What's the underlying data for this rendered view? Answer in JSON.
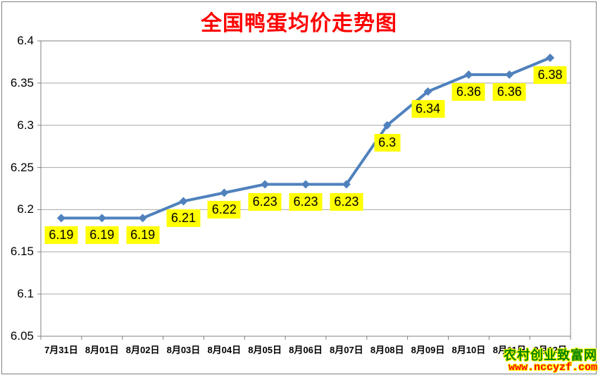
{
  "chart_data": {
    "type": "line",
    "title": "全国鸭蛋均价走势图",
    "categories": [
      "7月31日",
      "8月01日",
      "8月02日",
      "8月03日",
      "8月04日",
      "8月05日",
      "8月06日",
      "8月07日",
      "8月08日",
      "8月09日",
      "8月10日",
      "8月11日",
      "8月12日"
    ],
    "values": [
      6.19,
      6.19,
      6.19,
      6.21,
      6.22,
      6.23,
      6.23,
      6.23,
      6.3,
      6.34,
      6.36,
      6.36,
      6.38
    ],
    "data_labels": [
      "6.19",
      "6.19",
      "6.19",
      "6.21",
      "6.22",
      "6.23",
      "6.23",
      "6.23",
      "6.3",
      "6.34",
      "6.36",
      "6.36",
      "6.38"
    ],
    "xlabel": "",
    "ylabel": "",
    "ylim": [
      6.05,
      6.4
    ],
    "yticks": [
      6.4,
      6.35,
      6.3,
      6.25,
      6.2,
      6.15,
      6.1,
      6.05
    ],
    "grid": true,
    "legend": "none",
    "marker": "diamond",
    "colors": {
      "line": "#4F81BD",
      "marker": "#4F81BD",
      "title": "#FF0000",
      "label_bg": "#FFFF00",
      "label_text": "#000000",
      "gridline": "#A6A6A6",
      "axis": "#808080",
      "tick_label": "#000000"
    }
  },
  "watermark": {
    "site_name": "农村创业致富网",
    "site_url": "www.nccyzf.com",
    "name_color": "#008000",
    "url_color": "#FF0000",
    "outline_color": "#FFFF00"
  }
}
